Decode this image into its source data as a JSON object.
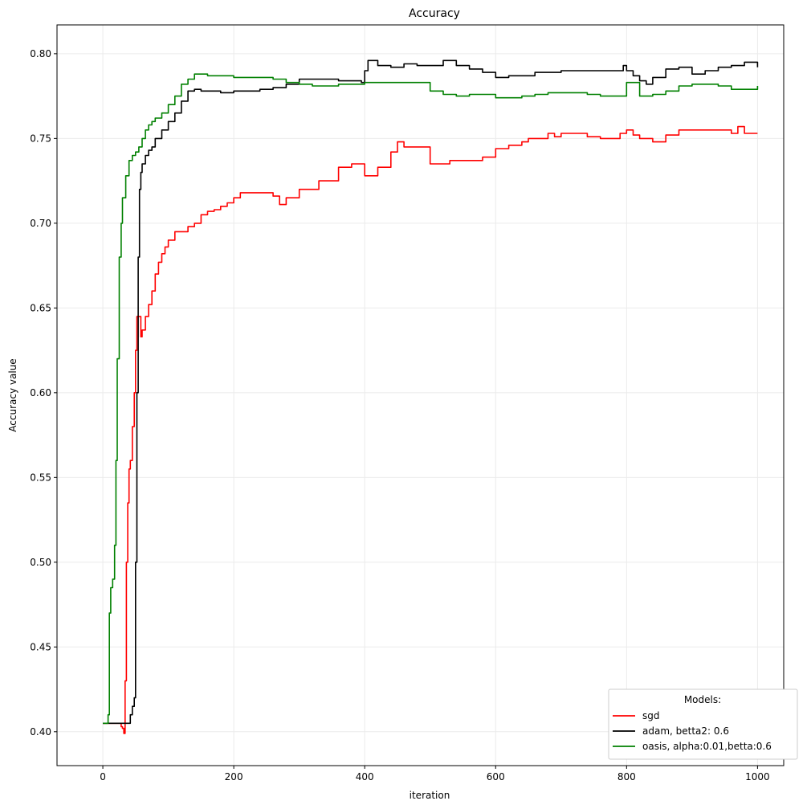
{
  "chart_data": {
    "type": "line",
    "title": "Accuracy",
    "xlabel": "iteration",
    "ylabel": "Accuracy value",
    "xlim": [
      -70,
      1040
    ],
    "ylim": [
      0.38,
      0.817
    ],
    "xticks": [
      0,
      200,
      400,
      600,
      800,
      1000
    ],
    "xtick_labels": [
      "0",
      "200",
      "400",
      "600",
      "800",
      "1000"
    ],
    "yticks": [
      0.4,
      0.45,
      0.5,
      0.55,
      0.6,
      0.65,
      0.7,
      0.75,
      0.8
    ],
    "ytick_labels": [
      "0.40",
      "0.45",
      "0.50",
      "0.55",
      "0.60",
      "0.65",
      "0.70",
      "0.75",
      "0.80"
    ],
    "grid": true,
    "legend": {
      "title": "Models:",
      "location": "lower right"
    },
    "series": [
      {
        "name": "sgd",
        "color": "#ff0000",
        "x": [
          0,
          25,
          28,
          30,
          32,
          34,
          36,
          38,
          40,
          42,
          45,
          48,
          50,
          52,
          55,
          58,
          60,
          65,
          70,
          75,
          80,
          85,
          90,
          95,
          100,
          110,
          120,
          130,
          140,
          150,
          160,
          170,
          180,
          190,
          200,
          210,
          220,
          240,
          260,
          270,
          280,
          300,
          320,
          330,
          340,
          360,
          380,
          400,
          420,
          440,
          450,
          460,
          470,
          500,
          520,
          530,
          560,
          580,
          600,
          620,
          640,
          650,
          660,
          680,
          690,
          700,
          720,
          740,
          760,
          790,
          800,
          810,
          820,
          840,
          860,
          880,
          900,
          920,
          940,
          960,
          970,
          980,
          1000
        ],
        "y": [
          0.405,
          0.405,
          0.403,
          0.402,
          0.399,
          0.43,
          0.5,
          0.535,
          0.555,
          0.56,
          0.58,
          0.6,
          0.625,
          0.645,
          0.645,
          0.633,
          0.637,
          0.645,
          0.652,
          0.66,
          0.67,
          0.677,
          0.682,
          0.686,
          0.69,
          0.695,
          0.695,
          0.698,
          0.7,
          0.705,
          0.707,
          0.708,
          0.71,
          0.712,
          0.715,
          0.718,
          0.718,
          0.718,
          0.716,
          0.711,
          0.715,
          0.72,
          0.72,
          0.725,
          0.725,
          0.733,
          0.735,
          0.728,
          0.733,
          0.742,
          0.748,
          0.745,
          0.745,
          0.735,
          0.735,
          0.737,
          0.737,
          0.739,
          0.744,
          0.746,
          0.748,
          0.75,
          0.75,
          0.753,
          0.751,
          0.753,
          0.753,
          0.751,
          0.75,
          0.753,
          0.755,
          0.752,
          0.75,
          0.748,
          0.752,
          0.755,
          0.755,
          0.755,
          0.755,
          0.753,
          0.757,
          0.753,
          0.753
        ]
      },
      {
        "name": "adam, betta2: 0.6",
        "color": "#000000",
        "x": [
          0,
          40,
          42,
          45,
          48,
          50,
          52,
          54,
          56,
          58,
          60,
          65,
          70,
          75,
          80,
          90,
          100,
          110,
          120,
          130,
          140,
          150,
          160,
          180,
          200,
          220,
          240,
          260,
          280,
          300,
          320,
          340,
          360,
          380,
          395,
          400,
          405,
          420,
          440,
          460,
          480,
          500,
          520,
          540,
          560,
          580,
          600,
          620,
          640,
          660,
          680,
          700,
          720,
          740,
          760,
          780,
          795,
          800,
          810,
          820,
          830,
          840,
          860,
          880,
          900,
          920,
          940,
          960,
          980,
          1000
        ],
        "y": [
          0.405,
          0.405,
          0.41,
          0.415,
          0.42,
          0.5,
          0.6,
          0.68,
          0.72,
          0.73,
          0.735,
          0.74,
          0.743,
          0.745,
          0.75,
          0.755,
          0.76,
          0.765,
          0.772,
          0.778,
          0.779,
          0.778,
          0.778,
          0.777,
          0.778,
          0.778,
          0.779,
          0.78,
          0.782,
          0.785,
          0.785,
          0.785,
          0.784,
          0.784,
          0.783,
          0.79,
          0.796,
          0.793,
          0.792,
          0.794,
          0.793,
          0.793,
          0.796,
          0.793,
          0.791,
          0.789,
          0.786,
          0.787,
          0.787,
          0.789,
          0.789,
          0.79,
          0.79,
          0.79,
          0.79,
          0.79,
          0.793,
          0.79,
          0.787,
          0.784,
          0.782,
          0.786,
          0.791,
          0.792,
          0.788,
          0.79,
          0.792,
          0.793,
          0.795,
          0.792
        ]
      },
      {
        "name": "oasis, alpha:0.01,betta:0.6",
        "color": "#008000",
        "x": [
          0,
          5,
          8,
          10,
          12,
          15,
          18,
          20,
          22,
          25,
          28,
          30,
          35,
          40,
          45,
          50,
          55,
          60,
          65,
          70,
          75,
          80,
          90,
          100,
          110,
          120,
          130,
          140,
          160,
          180,
          200,
          220,
          240,
          260,
          280,
          300,
          320,
          340,
          360,
          380,
          400,
          420,
          460,
          500,
          520,
          540,
          560,
          580,
          600,
          620,
          640,
          660,
          680,
          700,
          720,
          740,
          760,
          780,
          800,
          820,
          840,
          860,
          880,
          900,
          920,
          940,
          960,
          980,
          1000
        ],
        "y": [
          0.405,
          0.405,
          0.41,
          0.47,
          0.485,
          0.49,
          0.51,
          0.56,
          0.62,
          0.68,
          0.7,
          0.715,
          0.728,
          0.737,
          0.74,
          0.742,
          0.745,
          0.75,
          0.755,
          0.758,
          0.76,
          0.762,
          0.765,
          0.77,
          0.775,
          0.782,
          0.785,
          0.788,
          0.787,
          0.787,
          0.786,
          0.786,
          0.786,
          0.785,
          0.783,
          0.782,
          0.781,
          0.781,
          0.782,
          0.782,
          0.783,
          0.783,
          0.783,
          0.778,
          0.776,
          0.775,
          0.776,
          0.776,
          0.774,
          0.774,
          0.775,
          0.776,
          0.777,
          0.777,
          0.777,
          0.776,
          0.775,
          0.775,
          0.783,
          0.775,
          0.776,
          0.778,
          0.781,
          0.782,
          0.782,
          0.781,
          0.779,
          0.779,
          0.781
        ]
      }
    ]
  }
}
